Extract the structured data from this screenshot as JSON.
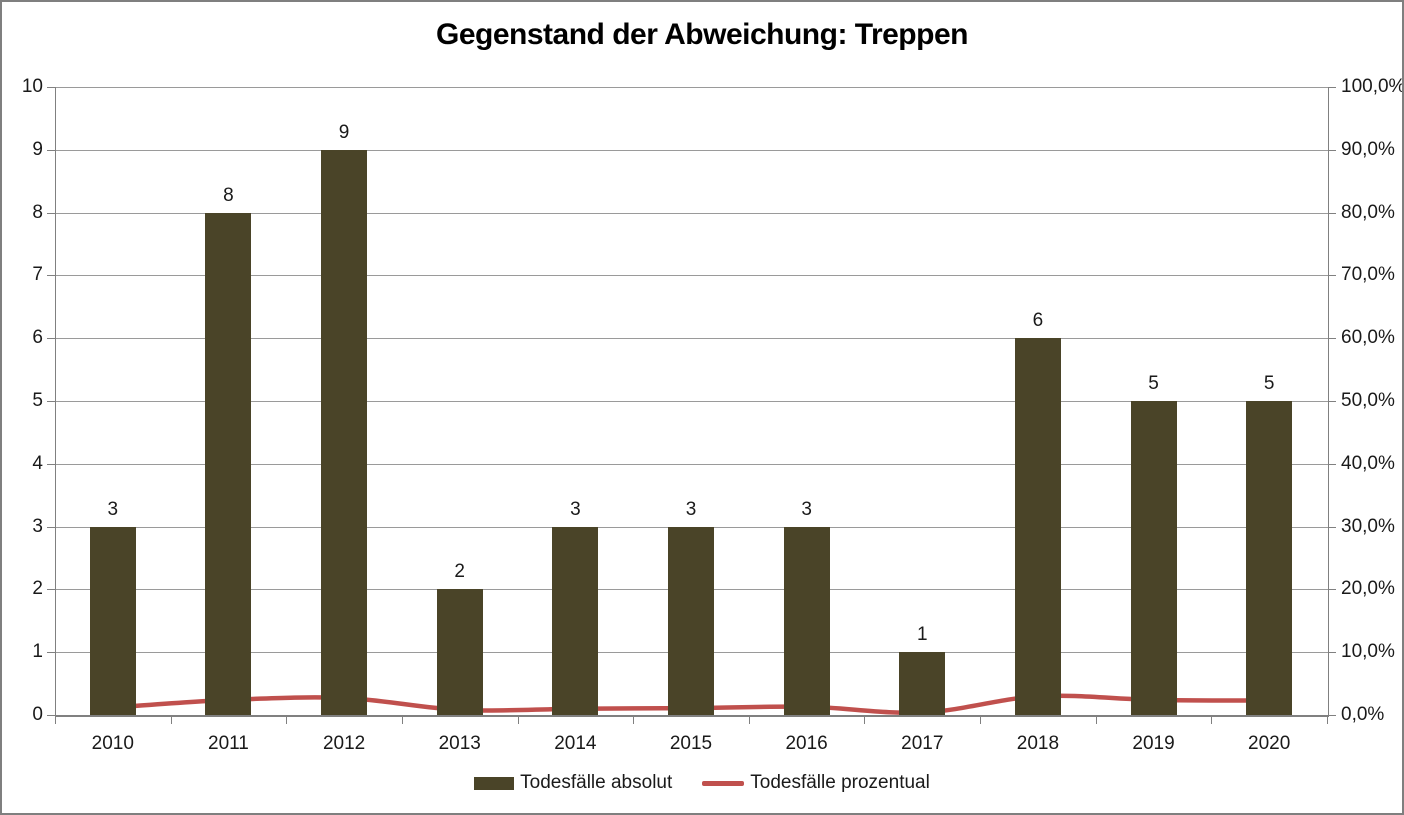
{
  "title": "Gegenstand der Abweichung: Treppen",
  "colors": {
    "bar": "#4A4428",
    "line": "#C0504D",
    "gridline": "#9A9A9A",
    "axis": "#808080",
    "text": "#1A1A1A",
    "border": "#7F7F7F"
  },
  "chart_data": {
    "type": "bar",
    "title": "Gegenstand der Abweichung: Treppen",
    "categories": [
      "2010",
      "2011",
      "2012",
      "2013",
      "2014",
      "2015",
      "2016",
      "2017",
      "2018",
      "2019",
      "2020"
    ],
    "series": [
      {
        "name": "Todesfälle absolut",
        "type": "bar",
        "axis": "left",
        "color": "#4A4428",
        "values": [
          3,
          8,
          9,
          2,
          3,
          3,
          3,
          1,
          6,
          5,
          5
        ],
        "data_labels": [
          "3",
          "8",
          "9",
          "2",
          "3",
          "3",
          "3",
          "1",
          "6",
          "5",
          "5"
        ]
      },
      {
        "name": "Todesfälle prozentual",
        "type": "line",
        "axis": "right",
        "color": "#C0504D",
        "values_percent": [
          1.2,
          2.4,
          2.7,
          0.8,
          1.0,
          1.1,
          1.3,
          0.4,
          3.0,
          2.4,
          2.3
        ]
      }
    ],
    "left_axis": {
      "min": 0,
      "max": 10,
      "step": 1,
      "ticks": [
        "0",
        "1",
        "2",
        "3",
        "4",
        "5",
        "6",
        "7",
        "8",
        "9",
        "10"
      ]
    },
    "right_axis": {
      "min": 0,
      "max": 100,
      "step": 10,
      "ticks": [
        "0,0%",
        "10,0%",
        "20,0%",
        "30,0%",
        "40,0%",
        "50,0%",
        "60,0%",
        "70,0%",
        "80,0%",
        "90,0%",
        "100,0%"
      ]
    },
    "grid": true,
    "legend_position": "bottom"
  },
  "legend": {
    "items": [
      {
        "label": "Todesfälle absolut"
      },
      {
        "label": "Todesfälle prozentual"
      }
    ]
  }
}
